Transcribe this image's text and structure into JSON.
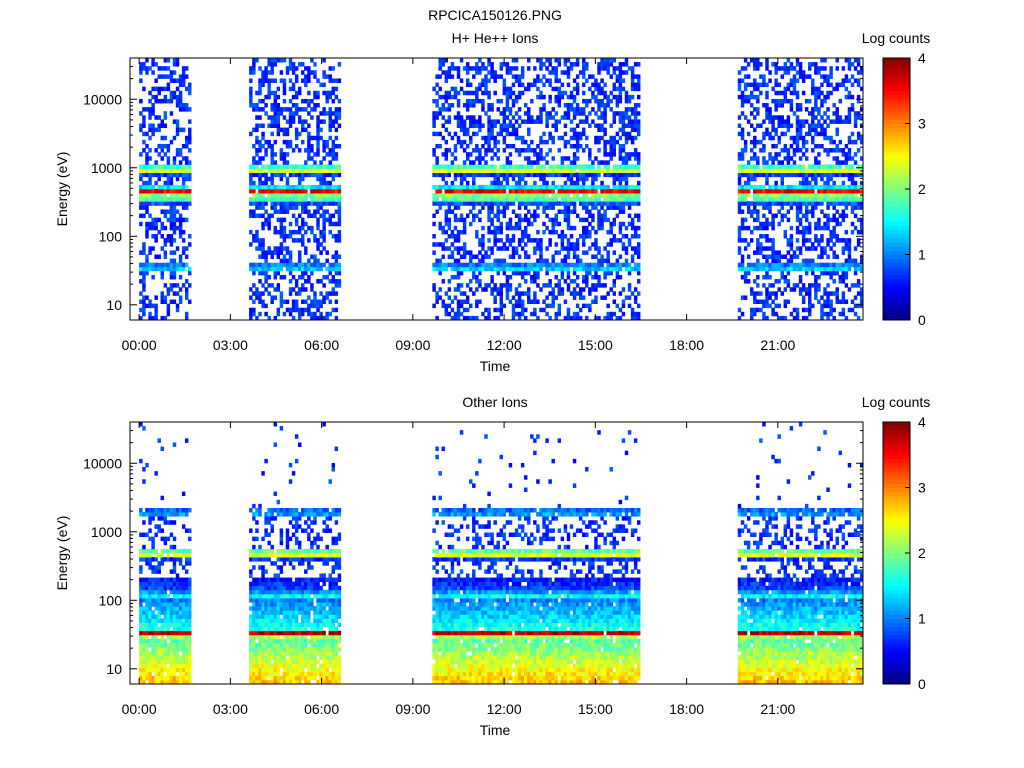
{
  "figure": {
    "title": "RPCICA150126.PNG"
  },
  "colorscale": [
    "#000080",
    "#0000ff",
    "#0080ff",
    "#00ffff",
    "#80ff80",
    "#ffff00",
    "#ff8000",
    "#ff0000",
    "#800000"
  ],
  "chart_data": [
    {
      "type": "heatmap",
      "title": "H+ He++ Ions",
      "xlabel": "Time",
      "ylabel": "Energy (eV)",
      "x_ticks": [
        "00:00",
        "03:00",
        "06:00",
        "09:00",
        "12:00",
        "15:00",
        "18:00",
        "21:00"
      ],
      "y_ticks": [
        "10",
        "100",
        "1000",
        "10000"
      ],
      "y_scale": "log",
      "ylim": [
        6,
        40000
      ],
      "xlim_hours": [
        -0.3,
        23.8
      ],
      "data_intervals_hours": [
        [
          0.0,
          1.7
        ],
        [
          3.6,
          6.6
        ],
        [
          9.6,
          16.5
        ],
        [
          19.7,
          23.8
        ]
      ],
      "colorbar": {
        "label": "Log counts",
        "ticks": [
          "0",
          "1",
          "2",
          "3",
          "4"
        ],
        "range": [
          0,
          4
        ]
      },
      "features": [
        {
          "energy_eV": 35,
          "log_counts": 1.4,
          "description_band": "low"
        },
        {
          "energy_eV": 950,
          "log_counts": 2.5
        },
        {
          "energy_eV": 350,
          "log_counts": 1.8
        },
        {
          "energy_eV": 450,
          "log_counts": 3.6
        }
      ]
    },
    {
      "type": "heatmap",
      "title": "Other Ions",
      "xlabel": "Time",
      "ylabel": "Energy (eV)",
      "x_ticks": [
        "00:00",
        "03:00",
        "06:00",
        "09:00",
        "12:00",
        "15:00",
        "18:00",
        "21:00"
      ],
      "y_ticks": [
        "10",
        "100",
        "1000",
        "10000"
      ],
      "y_scale": "log",
      "ylim": [
        6,
        40000
      ],
      "xlim_hours": [
        -0.3,
        23.8
      ],
      "data_intervals_hours": [
        [
          0.0,
          1.7
        ],
        [
          3.6,
          6.6
        ],
        [
          9.6,
          16.5
        ],
        [
          19.7,
          23.8
        ]
      ],
      "colorbar": {
        "label": "Log counts",
        "ticks": [
          "0",
          "1",
          "2",
          "3",
          "4"
        ],
        "range": [
          0,
          4
        ]
      },
      "features": [
        {
          "energy_eV": 33,
          "log_counts": 3.8
        },
        {
          "energy_eV": 120,
          "log_counts": 1.6
        },
        {
          "energy_eV": 1900,
          "log_counts": 1.2
        },
        {
          "energy_eV": 480,
          "log_counts": 2.6
        }
      ]
    }
  ]
}
